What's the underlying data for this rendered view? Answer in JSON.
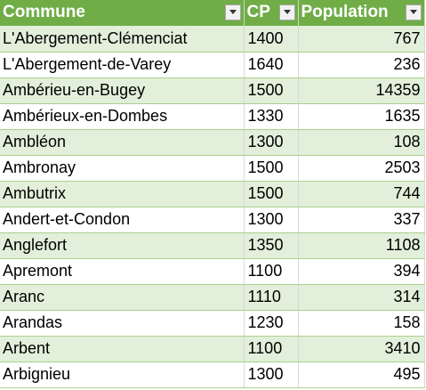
{
  "headers": {
    "commune": "Commune",
    "cp": "CP",
    "population": "Population"
  },
  "filter_icon": "chevron-down-icon",
  "colors": {
    "header_bg": "#70ad47",
    "band_row": "#e2efda",
    "plain_row": "#ffffff"
  },
  "rows": [
    {
      "commune": "L'Abergement-Clémenciat",
      "cp": "1400",
      "population": "767"
    },
    {
      "commune": "L'Abergement-de-Varey",
      "cp": "1640",
      "population": "236"
    },
    {
      "commune": "Ambérieu-en-Bugey",
      "cp": "1500",
      "population": "14359"
    },
    {
      "commune": "Ambérieux-en-Dombes",
      "cp": "1330",
      "population": "1635"
    },
    {
      "commune": "Ambléon",
      "cp": "1300",
      "population": "108"
    },
    {
      "commune": "Ambronay",
      "cp": "1500",
      "population": "2503"
    },
    {
      "commune": "Ambutrix",
      "cp": "1500",
      "population": "744"
    },
    {
      "commune": "Andert-et-Condon",
      "cp": "1300",
      "population": "337"
    },
    {
      "commune": "Anglefort",
      "cp": "1350",
      "population": "1108"
    },
    {
      "commune": "Apremont",
      "cp": "1100",
      "population": "394"
    },
    {
      "commune": "Aranc",
      "cp": "1110",
      "population": "314"
    },
    {
      "commune": "Arandas",
      "cp": "1230",
      "population": "158"
    },
    {
      "commune": "Arbent",
      "cp": "1100",
      "population": "3410"
    },
    {
      "commune": "Arbignieu",
      "cp": "1300",
      "population": "495"
    }
  ]
}
